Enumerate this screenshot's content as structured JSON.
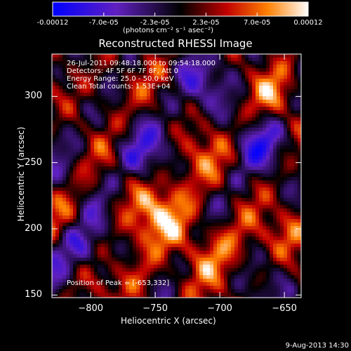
{
  "chart_data": {
    "type": "heatmap",
    "title": "Reconstructed RHESSI Image",
    "xlabel": "Heliocentric X (arcsec)",
    "ylabel": "Heliocentric Y (arcsec)",
    "xlim": [
      -830,
      -637
    ],
    "ylim": [
      148,
      332
    ],
    "x_ticks": [
      -800,
      -750,
      -700,
      -650
    ],
    "y_ticks": [
      150,
      200,
      250,
      300
    ],
    "colorbar": {
      "ticks": [
        "-0.00012",
        "-7.0e-05",
        "-2.3e-05",
        "2.3e-05",
        "7.0e-05",
        "0.00012"
      ],
      "range": [
        -0.00012,
        0.00012
      ],
      "unit_label": "(photons cm⁻² s⁻¹ asec⁻²)"
    },
    "annotations": [
      "26-Jul-2011 09:48:18.000 to 09:54:18.000",
      "Detectors: 4F 5F 6F 7F 8F, Att 0",
      "Energy Range: 25.0 - 50.0 keV",
      "Clean    Total counts: 1.53E+04"
    ],
    "peak_label": "Position of Peak = [-653,332]",
    "date_label": "9-Aug-2013 14:30"
  }
}
